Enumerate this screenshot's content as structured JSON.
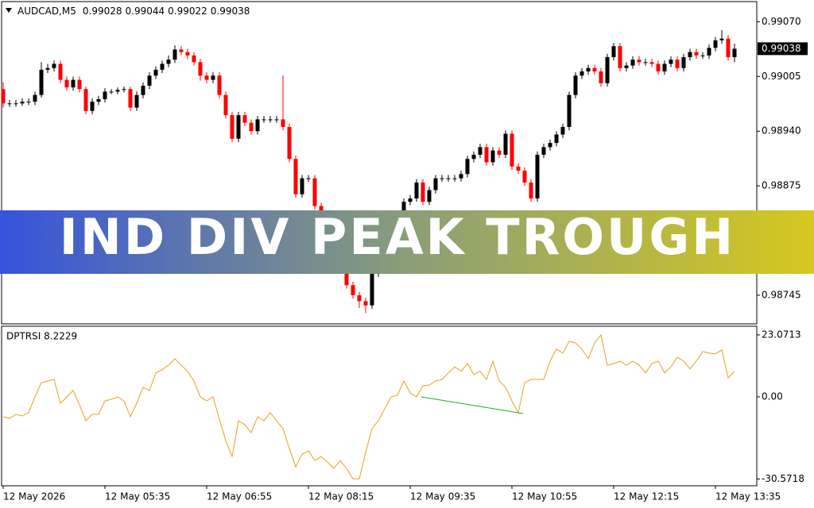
{
  "chart_data": [
    {
      "type": "candlestick",
      "symbol": "AUDCAD,M5",
      "up_color": "#000000",
      "down_color": "#ff0000",
      "categories": [
        "12 May 2026",
        null,
        null,
        null,
        null,
        null,
        null,
        null,
        null,
        null,
        null,
        null,
        null,
        null,
        null,
        null,
        "12 May 05:35",
        null,
        null,
        null,
        null,
        null,
        null,
        null,
        null,
        null,
        null,
        null,
        null,
        null,
        null,
        null,
        "12 May 06:55",
        null,
        null,
        null,
        null,
        null,
        null,
        null,
        null,
        null,
        null,
        null,
        null,
        null,
        null,
        null,
        "12 May 08:15",
        null,
        null,
        null,
        null,
        null,
        null,
        null,
        null,
        null,
        null,
        null,
        null,
        null,
        null,
        null,
        "12 May 09:35",
        null,
        null,
        null,
        null,
        null,
        null,
        null,
        null,
        null,
        null,
        null,
        null,
        null,
        null,
        null,
        "12 May 10:55",
        null,
        null,
        null,
        null,
        null,
        null,
        null,
        null,
        null,
        null,
        null,
        null,
        null,
        null,
        null,
        "12 May 12:15",
        null,
        null,
        null,
        null,
        null,
        null,
        null,
        null,
        null,
        null,
        null,
        null,
        null,
        null,
        null,
        "12 May 13:35",
        null,
        null,
        null
      ],
      "open": [
        0.9899,
        0.98973,
        0.98973,
        0.98973,
        0.98975,
        0.98975,
        0.98983,
        0.99013,
        0.99015,
        0.9902,
        0.99001,
        0.98992,
        0.99001,
        0.9899,
        0.98964,
        0.98975,
        0.98978,
        0.98987,
        0.98987,
        0.98989,
        0.9899,
        0.98968,
        0.98983,
        0.98994,
        0.99006,
        0.99013,
        0.9902,
        0.99025,
        0.99037,
        0.99034,
        0.9903,
        0.99022,
        0.99006,
        0.99001,
        0.99006,
        0.98983,
        0.98959,
        0.98931,
        0.98959,
        0.9895,
        0.9894,
        0.98954,
        0.98954,
        0.98954,
        0.98954,
        0.98945,
        0.98907,
        0.98865,
        0.98884,
        0.98884,
        0.98851,
        0.98832,
        0.98813,
        0.98795,
        0.98776,
        0.98757,
        0.98745,
        0.98738,
        0.98733,
        0.98771,
        0.98785,
        0.98813,
        0.98832,
        0.98842,
        0.98856,
        0.9886,
        0.98879,
        0.98856,
        0.9887,
        0.98884,
        0.98884,
        0.98884,
        0.98884,
        0.98889,
        0.98907,
        0.98912,
        0.98921,
        0.98903,
        0.98917,
        0.98912,
        0.98937,
        0.98898,
        0.98893,
        0.98879,
        0.9886,
        0.98912,
        0.98921,
        0.98926,
        0.98936,
        0.98945,
        0.98983,
        0.99006,
        0.99011,
        0.99015,
        0.99011,
        0.98997,
        0.99028,
        0.99041,
        0.99015,
        0.99018,
        0.99025,
        0.99022,
        0.99022,
        0.9902,
        0.99011,
        0.9902,
        0.99025,
        0.99015,
        0.99028,
        0.99034,
        0.9903,
        0.9903,
        0.99039,
        0.99048,
        0.9905,
        0.99028
      ],
      "high": [
        0.98998,
        0.98977,
        0.98977,
        0.98979,
        0.98979,
        0.98987,
        0.99022,
        0.9902,
        0.99024,
        0.99024,
        0.99005,
        0.99005,
        0.99005,
        0.98993,
        0.98979,
        0.98982,
        0.98991,
        0.9899,
        0.98992,
        0.98993,
        0.98993,
        0.98987,
        0.98998,
        0.9901,
        0.99017,
        0.99024,
        0.9903,
        0.99042,
        0.99041,
        0.99038,
        0.99034,
        0.99026,
        0.9901,
        0.9901,
        0.9901,
        0.98987,
        0.98963,
        0.98963,
        0.98963,
        0.98954,
        0.98958,
        0.98958,
        0.98958,
        0.98958,
        0.99006,
        0.98949,
        0.98911,
        0.98888,
        0.98888,
        0.98888,
        0.98855,
        0.98836,
        0.98817,
        0.98799,
        0.9878,
        0.98761,
        0.98749,
        0.98742,
        0.98775,
        0.98789,
        0.98817,
        0.98836,
        0.98846,
        0.9886,
        0.98864,
        0.98883,
        0.98883,
        0.98874,
        0.98888,
        0.98888,
        0.98888,
        0.98888,
        0.98893,
        0.98911,
        0.98916,
        0.98925,
        0.98925,
        0.98921,
        0.98921,
        0.98941,
        0.98941,
        0.98902,
        0.98897,
        0.98883,
        0.98916,
        0.98925,
        0.9893,
        0.9894,
        0.98949,
        0.98987,
        0.9901,
        0.99015,
        0.99019,
        0.99019,
        0.99015,
        0.99032,
        0.99045,
        0.99045,
        0.99022,
        0.99029,
        0.99029,
        0.99026,
        0.99026,
        0.99024,
        0.99024,
        0.99029,
        0.99029,
        0.99032,
        0.99038,
        0.99038,
        0.99034,
        0.99043,
        0.99052,
        0.9906,
        0.99054,
        0.99044
      ],
      "low": [
        0.98968,
        0.98969,
        0.98969,
        0.9897,
        0.98971,
        0.98971,
        0.9898,
        0.99009,
        0.99011,
        0.98997,
        0.98988,
        0.98988,
        0.98986,
        0.9896,
        0.9896,
        0.98971,
        0.98974,
        0.98984,
        0.98984,
        0.98986,
        0.98964,
        0.98964,
        0.98979,
        0.9899,
        0.99002,
        0.99009,
        0.99016,
        0.99021,
        0.9903,
        0.99026,
        0.99018,
        0.99,
        0.98997,
        0.98997,
        0.98979,
        0.98955,
        0.98927,
        0.98927,
        0.98946,
        0.98936,
        0.98936,
        0.9895,
        0.9895,
        0.9895,
        0.98941,
        0.98903,
        0.98861,
        0.98861,
        0.9888,
        0.98847,
        0.98828,
        0.98809,
        0.98791,
        0.98772,
        0.98753,
        0.98741,
        0.9873,
        0.98724,
        0.98729,
        0.98767,
        0.98781,
        0.98809,
        0.98828,
        0.98838,
        0.98852,
        0.98856,
        0.98852,
        0.98852,
        0.98866,
        0.9888,
        0.9888,
        0.9888,
        0.9888,
        0.98885,
        0.98903,
        0.98908,
        0.98899,
        0.98899,
        0.98908,
        0.98908,
        0.98894,
        0.98889,
        0.98875,
        0.98856,
        0.98856,
        0.98908,
        0.98917,
        0.98922,
        0.98932,
        0.98941,
        0.98979,
        0.99002,
        0.99007,
        0.99007,
        0.98993,
        0.98993,
        0.99024,
        0.99011,
        0.99011,
        0.99014,
        0.99018,
        0.99018,
        0.99016,
        0.99007,
        0.99007,
        0.99016,
        0.99011,
        0.99011,
        0.99024,
        0.99026,
        0.99026,
        0.99026,
        0.99035,
        0.99044,
        0.99024,
        0.99022
      ],
      "close": [
        0.98973,
        0.98973,
        0.98973,
        0.98975,
        0.98975,
        0.98983,
        0.99013,
        0.99015,
        0.9902,
        0.99001,
        0.98992,
        0.99001,
        0.9899,
        0.98964,
        0.98975,
        0.98978,
        0.98987,
        0.98987,
        0.98989,
        0.9899,
        0.98968,
        0.98983,
        0.98994,
        0.99006,
        0.99013,
        0.9902,
        0.99025,
        0.99037,
        0.99034,
        0.9903,
        0.99022,
        0.99006,
        0.99001,
        0.99006,
        0.98983,
        0.98959,
        0.98931,
        0.98959,
        0.9895,
        0.9894,
        0.98954,
        0.98954,
        0.98954,
        0.98954,
        0.98945,
        0.98907,
        0.98865,
        0.98884,
        0.98884,
        0.98851,
        0.98832,
        0.98813,
        0.98795,
        0.98776,
        0.98757,
        0.98745,
        0.98738,
        0.98733,
        0.98771,
        0.98785,
        0.98813,
        0.98832,
        0.98842,
        0.98856,
        0.9886,
        0.98879,
        0.98856,
        0.9887,
        0.98884,
        0.98884,
        0.98884,
        0.98884,
        0.98889,
        0.98907,
        0.98912,
        0.98921,
        0.98903,
        0.98917,
        0.98912,
        0.98937,
        0.98898,
        0.98893,
        0.98879,
        0.9886,
        0.98912,
        0.98921,
        0.98926,
        0.98936,
        0.98945,
        0.98983,
        0.99006,
        0.99011,
        0.99015,
        0.99011,
        0.98997,
        0.99028,
        0.99041,
        0.99015,
        0.99018,
        0.99025,
        0.99022,
        0.99022,
        0.9902,
        0.99011,
        0.9902,
        0.99025,
        0.99015,
        0.99028,
        0.99034,
        0.9903,
        0.9903,
        0.99039,
        0.99048,
        0.9905,
        0.99028,
        0.99038
      ],
      "ylim": [
        0.98711,
        0.99094
      ],
      "yticks": [
        {
          "value": 0.9907,
          "label": "0.99070"
        },
        0.99005,
        {
          "value": 0.9894,
          "label": "0.98940"
        },
        0.98875,
        0.98745
      ]
    },
    {
      "type": "line",
      "title": "DPTRSI 8.2229",
      "color": "#e8a31c",
      "values": [
        -7.4,
        -8.0,
        -6.5,
        -7.1,
        -5.9,
        0,
        5.3,
        5.9,
        6.5,
        -2.4,
        0,
        2.4,
        -3.0,
        -8.9,
        -6.5,
        -6.5,
        -1.5,
        -0.9,
        0,
        -1.5,
        -7.4,
        -2.4,
        3.6,
        2.4,
        8.9,
        10.1,
        11.8,
        14.2,
        11.8,
        9.5,
        5.9,
        0,
        -1.5,
        0,
        -8.3,
        -16.3,
        -22.2,
        -8.9,
        -10.4,
        -13.3,
        -7.4,
        -8.9,
        -5.9,
        -8.9,
        -11.8,
        -19.2,
        -26.0,
        -21.3,
        -20.1,
        -23.7,
        -22.2,
        -24.3,
        -26.6,
        -23.7,
        -26.6,
        -30.5,
        -30.5,
        -20.7,
        -11.8,
        -8.9,
        -4.4,
        0,
        0.6,
        5.9,
        1.5,
        0,
        4.1,
        4.4,
        5.9,
        6.5,
        8.9,
        11.2,
        9.5,
        12.4,
        8.3,
        9.5,
        6.5,
        13.3,
        5.9,
        3.6,
        -1.5,
        -5.9,
        5.3,
        6.5,
        6.5,
        6.5,
        13.3,
        17.8,
        16.3,
        20.7,
        20.1,
        17.8,
        14.2,
        20.1,
        23.1,
        11.8,
        12.4,
        13.3,
        11.8,
        13.3,
        11.8,
        8.9,
        12.4,
        13.3,
        8.9,
        11.2,
        14.8,
        13.3,
        10.4,
        13.3,
        16.9,
        16.3,
        16.0,
        17.5,
        7.1,
        9.5
      ],
      "ylim": [
        -33.1,
        26.3
      ],
      "yticks": [
        23.0713,
        {
          "value": 0,
          "label": "0.00"
        },
        -30.5718
      ]
    }
  ],
  "banner": "IND DIV PEAK TROUGH"
}
